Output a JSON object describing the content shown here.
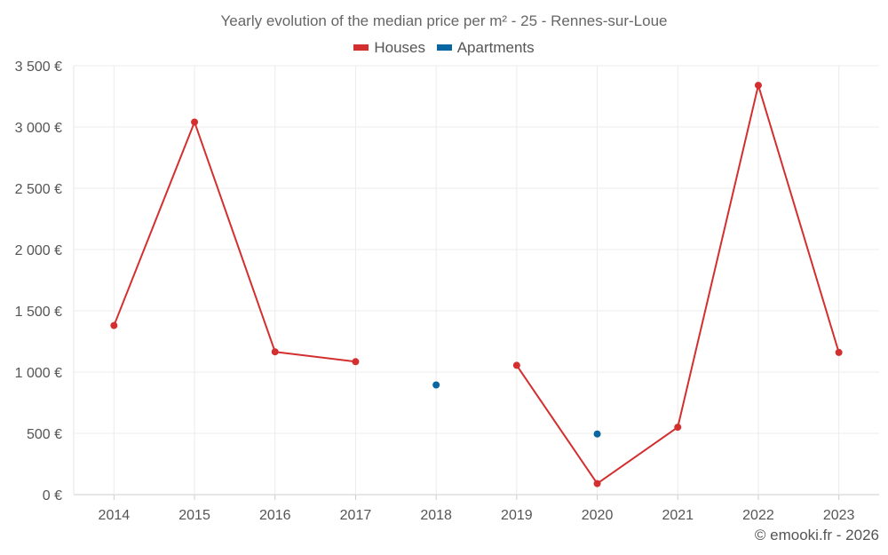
{
  "chart_data": {
    "type": "line",
    "title": "Yearly evolution of the median price per m² - 25 - Rennes-sur-Loue",
    "categories": [
      "2014",
      "2015",
      "2016",
      "2017",
      "2018",
      "2019",
      "2020",
      "2021",
      "2022",
      "2023"
    ],
    "ylim": [
      0,
      3500
    ],
    "yticks": [
      0,
      500,
      1000,
      1500,
      2000,
      2500,
      3000,
      3500
    ],
    "ytick_labels": [
      "0 €",
      "500 €",
      "1 000 €",
      "1 500 €",
      "2 000 €",
      "2 500 €",
      "3 000 €",
      "3 500 €"
    ],
    "series": [
      {
        "name": "Houses",
        "color": "#d32f2f",
        "values": [
          1380,
          3040,
          1165,
          1085,
          null,
          1055,
          90,
          550,
          3340,
          1160
        ]
      },
      {
        "name": "Apartments",
        "color": "#0a66a0",
        "values": [
          null,
          null,
          null,
          null,
          895,
          null,
          495,
          null,
          null,
          null
        ]
      }
    ],
    "grid": true,
    "legend_position": "top-center"
  },
  "footer": {
    "credit": "© emooki.fr - 2026"
  }
}
